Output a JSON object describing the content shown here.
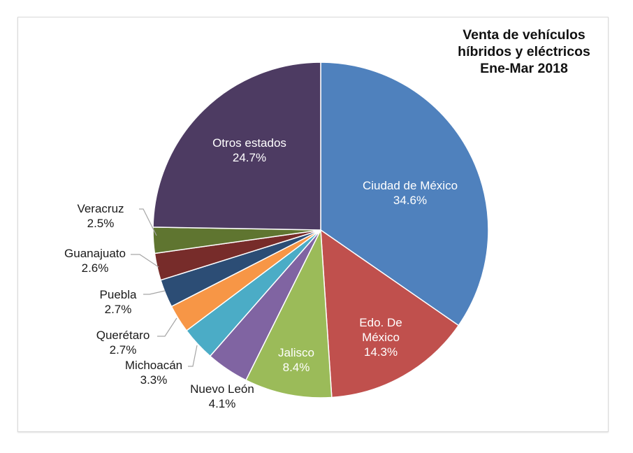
{
  "chart_data": {
    "type": "pie",
    "title": "Venta de vehículos híbridos y eléctricos Ene-Mar 2018",
    "title_lines": [
      "Venta de vehículos",
      "híbridos y eléctricos",
      "Ene-Mar 2018"
    ],
    "start_angle_deg": 0,
    "direction": "clockwise",
    "slices": [
      {
        "name": "Ciudad de México",
        "value": 34.6,
        "label": "34.6%",
        "color": "#4f81bd"
      },
      {
        "name": "Edo. De México",
        "value": 14.3,
        "label": "14.3%",
        "color": "#c0504d"
      },
      {
        "name": "Jalisco",
        "value": 8.4,
        "label": "8.4%",
        "color": "#9bbb59"
      },
      {
        "name": "Nuevo León",
        "value": 4.1,
        "label": "4.1%",
        "color": "#8064a2"
      },
      {
        "name": "Michoacán",
        "value": 3.3,
        "label": "3.3%",
        "color": "#4bacc6"
      },
      {
        "name": "Querétaro",
        "value": 2.7,
        "label": "2.7%",
        "color": "#f79646"
      },
      {
        "name": "Puebla",
        "value": 2.7,
        "label": "2.7%",
        "color": "#2c4d75"
      },
      {
        "name": "Guanajuato",
        "value": 2.6,
        "label": "2.6%",
        "color": "#772c2a"
      },
      {
        "name": "Veracruz",
        "value": 2.5,
        "label": "2.5%",
        "color": "#5f7530"
      },
      {
        "name": "Otros estados",
        "value": 24.7,
        "label": "24.7%",
        "color": "#4d3b62"
      }
    ],
    "unit": "%",
    "legend": "none (data labels on slices)"
  },
  "labels": {
    "cdmx": {
      "name": "Ciudad de México",
      "pct": "34.6%"
    },
    "edomex": {
      "name1": "Edo. De",
      "name2": "México",
      "pct": "14.3%"
    },
    "jalisco": {
      "name": "Jalisco",
      "pct": "8.4%"
    },
    "nl": {
      "name": "Nuevo León",
      "pct": "4.1%"
    },
    "mich": {
      "name": "Michoacán",
      "pct": "3.3%"
    },
    "qro": {
      "name": "Querétaro",
      "pct": "2.7%"
    },
    "pue": {
      "name": "Puebla",
      "pct": "2.7%"
    },
    "gto": {
      "name": "Guanajuato",
      "pct": "2.6%"
    },
    "ver": {
      "name": "Veracruz",
      "pct": "2.5%"
    },
    "otros": {
      "name": "Otros estados",
      "pct": "24.7%"
    }
  }
}
